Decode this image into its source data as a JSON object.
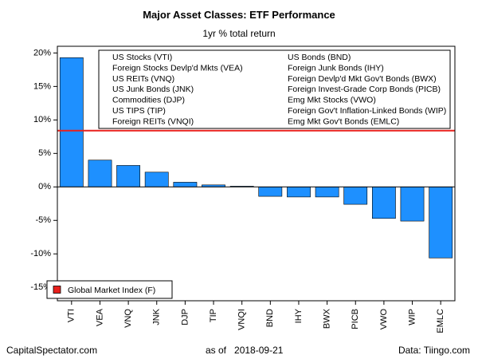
{
  "footer": {
    "source_left": "CapitalSpectator.com",
    "as_of_label": "as of",
    "as_of_date": "2018-09-21",
    "source_right": "Data: Tiingo.com"
  },
  "colors": {
    "bar": "#1e90ff",
    "reference_line": "#e8201c",
    "frame": "#000000"
  },
  "chart_data": {
    "type": "bar",
    "title": "Major Asset Classes: ETF Performance",
    "subtitle": "1yr % total return",
    "categories": [
      "VTI",
      "VEA",
      "VNQ",
      "JNK",
      "DJP",
      "TIP",
      "VNQI",
      "BND",
      "IHY",
      "BWX",
      "PICB",
      "VWO",
      "WIP",
      "EMLC"
    ],
    "values": [
      19.3,
      4.0,
      3.2,
      2.2,
      0.7,
      0.3,
      0.1,
      -1.4,
      -1.5,
      -1.5,
      -2.6,
      -4.7,
      -5.1,
      -10.6
    ],
    "ylim": [
      -17,
      21
    ],
    "yticks": [
      -15,
      -10,
      -5,
      0,
      5,
      10,
      15,
      20
    ],
    "ytick_labels": [
      "-15%",
      "-10%",
      "-5%",
      "0%",
      "5%",
      "10%",
      "15%",
      "20%"
    ],
    "reference_line": {
      "name": "Global Market Index (F)",
      "value": 8.4
    },
    "legend_placement": "top-right",
    "legend_entries_left": [
      "US Stocks (VTI)",
      "Foreign Stocks Devlp'd Mkts (VEA)",
      "US REITs (VNQ)",
      "US Junk Bonds (JNK)",
      "Commodities (DJP)",
      "US TIPS (TIP)",
      "Foreign REITs (VNQI)"
    ],
    "legend_entries_right": [
      "US Bonds (BND)",
      "Foreign Junk Bonds (IHY)",
      "Foreign Devlp'd Mkt Gov't Bonds (BWX)",
      "Foreign Invest-Grade Corp Bonds (PICB)",
      "Emg Mkt Stocks (VWO)",
      "Foreign Gov't Inflation-Linked Bonds (WIP)",
      "Emg Mkt Gov't Bonds (EMLC)"
    ],
    "grid": false
  }
}
